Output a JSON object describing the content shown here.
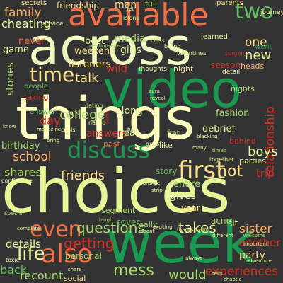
{
  "background": "#333333",
  "palette": {
    "dark_red": "#a50026",
    "red": "#d73027",
    "orange_red": "#f46d43",
    "orange": "#fdae61",
    "pale_yellow": "#fee08b",
    "cream": "#e6f598",
    "light_green": "#a6d96a",
    "green": "#66bd63",
    "dark_green": "#1a9850",
    "deep_green": "#006837"
  },
  "words": [
    {
      "id": "choices",
      "text": "choices",
      "color": "#e6f598"
    },
    {
      "id": "things",
      "text": "things",
      "color": "#ffffbf"
    },
    {
      "id": "across",
      "text": "across",
      "color": "#f0f7c0"
    },
    {
      "id": "week",
      "text": "week",
      "color": "#1a9850"
    },
    {
      "id": "video",
      "text": "video",
      "color": "#1a9850"
    },
    {
      "id": "available",
      "text": "available",
      "color": "#f46d43"
    },
    {
      "id": "discuss",
      "text": "discuss",
      "color": "#1a9850"
    },
    {
      "id": "first",
      "text": "first",
      "color": "#fee08b"
    },
    {
      "id": "also",
      "text": "also",
      "color": "#f46d43"
    },
    {
      "id": "two",
      "text": "two",
      "color": "#66bd63"
    },
    {
      "id": "time",
      "text": "time",
      "color": "#fee08b"
    },
    {
      "id": "even",
      "text": "even",
      "color": "#f46d43"
    },
    {
      "id": "questions",
      "text": "questions",
      "color": "#a6d96a"
    },
    {
      "id": "relationship",
      "text": "relationship",
      "color": "#d73027"
    },
    {
      "id": "friends",
      "text": "friends",
      "color": "#fee08b"
    },
    {
      "id": "life",
      "text": "life",
      "color": "#e6f598"
    },
    {
      "id": "getting",
      "text": "getting",
      "color": "#d73027"
    },
    {
      "id": "hot",
      "text": "hot",
      "color": "#fee08b"
    },
    {
      "id": "shares",
      "text": "shares",
      "color": "#a6d96a"
    },
    {
      "id": "school",
      "text": "school",
      "color": "#fdae61"
    },
    {
      "id": "talk",
      "text": "talk",
      "color": "#fee08b"
    },
    {
      "id": "college",
      "text": "college",
      "color": "#a6d96a"
    },
    {
      "id": "takes",
      "text": "takes",
      "color": "#e6f598"
    },
    {
      "id": "sister",
      "text": "sister",
      "color": "#fdae61"
    },
    {
      "id": "mess",
      "text": "mess",
      "color": "#a6d96a"
    },
    {
      "id": "new",
      "text": "new",
      "color": "#e6f598"
    },
    {
      "id": "family",
      "text": "family",
      "color": "#fdae61"
    },
    {
      "id": "one",
      "text": "one",
      "color": "#fee08b"
    },
    {
      "id": "cheating",
      "text": "cheating",
      "color": "#e6f598"
    },
    {
      "id": "listeners",
      "text": "listeners",
      "color": "#fee08b"
    },
    {
      "id": "wild",
      "text": "wild",
      "color": "#d73027"
    },
    {
      "id": "weekend",
      "text": "weekend",
      "color": "#fee08b"
    },
    {
      "id": "stories",
      "text": "stories",
      "color": "#a6d96a"
    },
    {
      "id": "day",
      "text": "day",
      "color": "#d73027"
    },
    {
      "id": "answers",
      "text": "answers",
      "color": "#d73027"
    },
    {
      "id": "boys",
      "text": "boys",
      "color": "#e6f598"
    },
    {
      "id": "experiences",
      "text": "experiences",
      "color": "#d73027"
    },
    {
      "id": "recount",
      "text": "recount",
      "color": "#a6d96a"
    },
    {
      "id": "back",
      "text": "back",
      "color": "#66bd63"
    },
    {
      "id": "would",
      "text": "would",
      "color": "#a6d96a"
    },
    {
      "id": "details",
      "text": "details",
      "color": "#e6f598"
    },
    {
      "id": "party",
      "text": "party",
      "color": "#fee08b"
    },
    {
      "id": "another",
      "text": "another",
      "color": "#d73027"
    },
    {
      "id": "trip",
      "text": "trip",
      "color": "#d73027"
    },
    {
      "id": "gives",
      "text": "gives",
      "color": "#e6f598"
    },
    {
      "id": "birthday",
      "text": "birthday",
      "color": "#a6d96a"
    },
    {
      "id": "girls",
      "text": "girls",
      "color": "#e6f598"
    },
    {
      "id": "media",
      "text": "media",
      "color": "#a6d96a"
    },
    {
      "id": "best",
      "text": "best",
      "color": "#e6f598"
    },
    {
      "id": "game",
      "text": "game",
      "color": "#e6f598"
    },
    {
      "id": "never",
      "text": "never",
      "color": "#f46d43"
    },
    {
      "id": "friendship",
      "text": "friendship",
      "color": "#fee08b"
    },
    {
      "id": "man",
      "text": "man",
      "color": "#fee08b"
    },
    {
      "id": "along",
      "text": "along",
      "color": "#e6f598"
    },
    {
      "id": "real",
      "text": "real",
      "color": "#e6f598"
    },
    {
      "id": "fashion",
      "text": "fashion",
      "color": "#a6d96a"
    },
    {
      "id": "debrief",
      "text": "debrief",
      "color": "#e6f598"
    },
    {
      "id": "entire",
      "text": "entire",
      "color": "#a6d96a"
    },
    {
      "id": "story",
      "text": "story",
      "color": "#66bd63"
    },
    {
      "id": "season",
      "text": "season",
      "color": "#d73027"
    },
    {
      "id": "learned",
      "text": "learned",
      "color": "#e6f598"
    },
    {
      "id": "people",
      "text": "people",
      "color": "#66bd63"
    },
    {
      "id": "taking",
      "text": "taking",
      "color": "#d73027"
    },
    {
      "id": "answer",
      "text": "answer",
      "color": "#66bd63"
    },
    {
      "id": "like",
      "text": "like",
      "color": "#e6f598"
    },
    {
      "id": "behind",
      "text": "behind",
      "color": "#d73027"
    },
    {
      "id": "parties",
      "text": "parties",
      "color": "#e6f598"
    },
    {
      "id": "past",
      "text": "past",
      "color": "#f46d43"
    },
    {
      "id": "acne",
      "text": "acne",
      "color": "#a6d96a"
    },
    {
      "id": "sit",
      "text": "sit",
      "color": "#e6f598"
    },
    {
      "id": "really",
      "text": "really",
      "color": "#a6d96a"
    },
    {
      "id": "cover",
      "text": "cover",
      "color": "#66bd63"
    },
    {
      "id": "segment",
      "text": "segment",
      "color": "#a6d96a"
    },
    {
      "id": "personal",
      "text": "personal",
      "color": "#a6d96a"
    },
    {
      "id": "social",
      "text": "social",
      "color": "#fee08b"
    },
    {
      "id": "heads",
      "text": "heads",
      "color": "#fdae61"
    },
    {
      "id": "nights",
      "text": "nights",
      "color": "#a6d96a"
    },
    {
      "id": "detail",
      "text": "detail",
      "color": "#e6f598"
    },
    {
      "id": "night",
      "text": "night",
      "color": "#fee08b"
    },
    {
      "id": "thoughts",
      "text": "thoughts",
      "color": "#e6f598"
    },
    {
      "id": "secrets",
      "text": "secrets",
      "color": "#fee08b"
    },
    {
      "id": "advice",
      "text": "advice",
      "color": "#e6f598"
    },
    {
      "id": "full",
      "text": "full",
      "color": "#a6d96a"
    },
    {
      "id": "parents",
      "text": "parents",
      "color": "#fee08b"
    },
    {
      "id": "journey",
      "text": "journey",
      "color": "#e6f598"
    },
    {
      "id": "island",
      "text": "island",
      "color": "#e6f598"
    },
    {
      "id": "relationships",
      "text": "relationships",
      "color": "#a6d96a"
    },
    {
      "id": "class",
      "text": "class",
      "color": "#a6d96a"
    },
    {
      "id": "valentines",
      "text": "valentines",
      "color": "#e6f598"
    },
    {
      "id": "surgery",
      "text": "surgery",
      "color": "#d73027"
    },
    {
      "id": "went",
      "text": "went",
      "color": "#1a9850"
    },
    {
      "id": "brand",
      "text": "brand",
      "color": "#e6f598"
    },
    {
      "id": "dating",
      "text": "dating",
      "color": "#a6d96a"
    },
    {
      "id": "work",
      "text": "work",
      "color": "#e6f598"
    },
    {
      "id": "magazine",
      "text": "magazine",
      "color": "#e6f598"
    },
    {
      "id": "crisis",
      "text": "crisis",
      "color": "#e6f598"
    },
    {
      "id": "naked",
      "text": "naked",
      "color": "#e6f598"
    },
    {
      "id": "food",
      "text": "food",
      "color": "#d73027"
    },
    {
      "id": "confidence",
      "text": "confidence",
      "color": "#e6f598"
    },
    {
      "id": "special",
      "text": "special",
      "color": "#a6d96a"
    },
    {
      "id": "complete",
      "text": "complete",
      "color": "#e6f598"
    },
    {
      "id": "toxic",
      "text": "toxic",
      "color": "#e6f598"
    },
    {
      "id": "share",
      "text": "share",
      "color": "#e6f598"
    },
    {
      "id": "laugh",
      "text": "laugh",
      "color": "#a6d96a"
    },
    {
      "id": "surprise",
      "text": "surprise",
      "color": "#e6f598"
    },
    {
      "id": "guest",
      "text": "guest",
      "color": "#e6f598"
    },
    {
      "id": "frat",
      "text": "frat",
      "color": "#e6f598"
    },
    {
      "id": "blacking",
      "text": "blacking",
      "color": "#e6f598"
    },
    {
      "id": "many",
      "text": "many",
      "color": "#e6f598"
    },
    {
      "id": "times",
      "text": "times",
      "color": "#a6d96a"
    },
    {
      "id": "together",
      "text": "together",
      "color": "#e6f598"
    },
    {
      "id": "thanksgiving",
      "text": "thanksgiving",
      "color": "#e6f598"
    },
    {
      "id": "strip",
      "text": "strip",
      "color": "#e6f598"
    },
    {
      "id": "exciting",
      "text": "exciting",
      "color": "#e6f598"
    },
    {
      "id": "recent",
      "text": "recent",
      "color": "#e6f598"
    },
    {
      "id": "always",
      "text": "always",
      "color": "#e6f598"
    },
    {
      "id": "welcome",
      "text": "welcome",
      "color": "#a6d96a"
    },
    {
      "id": "important",
      "text": "important",
      "color": "#e6f598"
    },
    {
      "id": "adventure",
      "text": "adventure",
      "color": "#e6f598"
    },
    {
      "id": "chaotic",
      "text": "chaotic",
      "color": "#e6f598"
    },
    {
      "id": "tells",
      "text": "tells",
      "color": "#e6f598"
    },
    {
      "id": "yet",
      "text": "yet",
      "color": "#e6f598"
    },
    {
      "id": "know",
      "text": "know",
      "color": "#e6f598"
    },
    {
      "id": "year",
      "text": "year",
      "color": "#fee08b"
    },
    {
      "id": "bad",
      "text": "bad",
      "color": "#e6f598"
    },
    {
      "id": "bring",
      "text": "bring",
      "color": "#e6f598"
    },
    {
      "id": "aura",
      "text": "aura",
      "color": "#e6f598"
    },
    {
      "id": "reveal",
      "text": "reveal",
      "color": "#e6f598"
    },
    {
      "id": "different",
      "text": "different",
      "color": "#e6f598"
    }
  ]
}
